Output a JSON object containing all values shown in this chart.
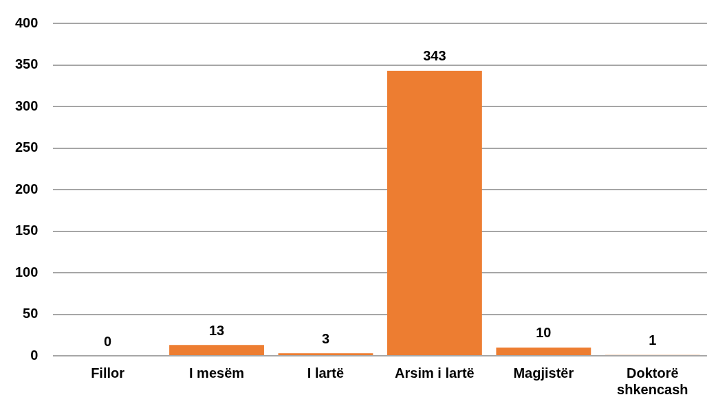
{
  "chart_data": {
    "type": "bar",
    "categories": [
      "Fillor",
      "I mesëm",
      "I lartë",
      "Arsim i lartë",
      "Magjistër",
      "Doktorë shkencash"
    ],
    "values": [
      0,
      13,
      3,
      343,
      10,
      1
    ],
    "color": "#ed7d31",
    "ylim": [
      0,
      400
    ],
    "yticks": [
      0,
      50,
      100,
      150,
      200,
      250,
      300,
      350,
      400
    ],
    "grid": "y",
    "data_labels": true
  }
}
